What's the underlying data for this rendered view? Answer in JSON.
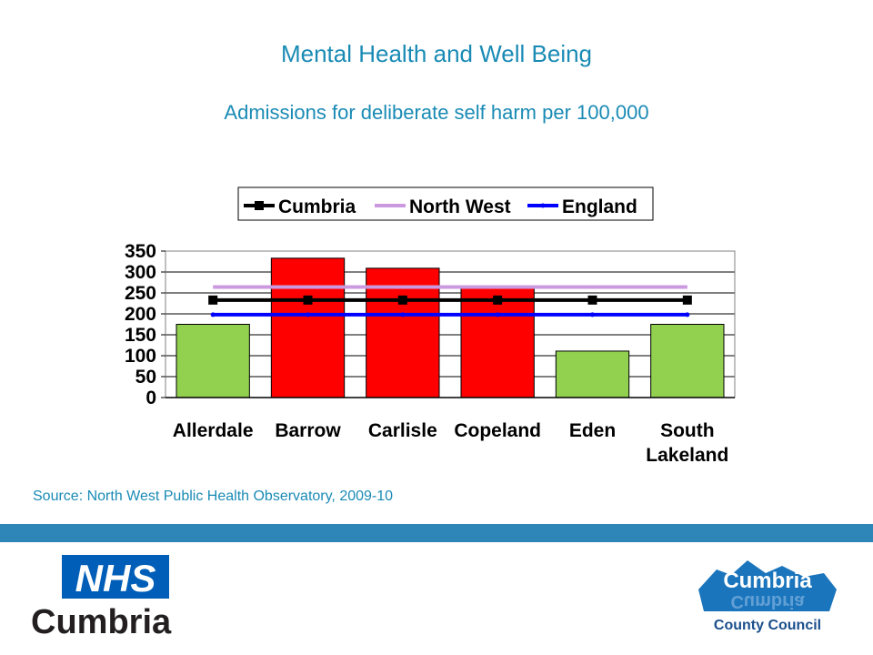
{
  "header": {
    "title": "Mental Health and Well Being",
    "subtitle": "Admissions for deliberate self harm per 100,000"
  },
  "source": "Source: North West Public Health Observatory, 2009-10",
  "logos": {
    "nhs_badge": "NHS",
    "nhs_name": "Cumbria",
    "council_top": "Cumbria",
    "council_bottom": "County Council"
  },
  "colors": {
    "title": "#1a8bb5",
    "band": "#2e86b8",
    "bar_high": "#ff0000",
    "bar_low": "#92d050",
    "cumbria": "#000000",
    "north_west": "#cc99e0",
    "england": "#0000ff"
  },
  "chart_data": {
    "type": "bar",
    "categories": [
      [
        "Allerdale"
      ],
      [
        "Barrow"
      ],
      [
        "Carlisle"
      ],
      [
        "Copeland"
      ],
      [
        "Eden"
      ],
      [
        "South",
        "Lakeland"
      ]
    ],
    "values": [
      175,
      333,
      309,
      262,
      111,
      175
    ],
    "bar_colors": [
      "#92d050",
      "#ff0000",
      "#ff0000",
      "#ff0000",
      "#92d050",
      "#92d050"
    ],
    "reference_lines": [
      {
        "name": "Cumbria",
        "value": 233,
        "color": "#000000",
        "marker": "square"
      },
      {
        "name": "North West",
        "value": 264,
        "color": "#cc99e0",
        "marker": "none"
      },
      {
        "name": "England",
        "value": 198,
        "color": "#0000ff",
        "marker": "dot"
      }
    ],
    "ylim": [
      0,
      350
    ],
    "yticks": [
      "0",
      "50",
      "100",
      "150",
      "200",
      "250",
      "300",
      "350"
    ],
    "grid": true,
    "legend": "top"
  }
}
